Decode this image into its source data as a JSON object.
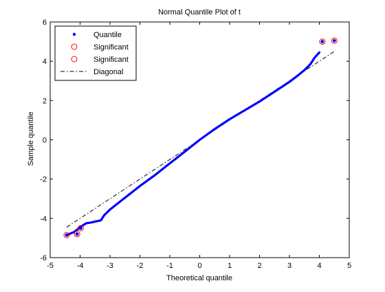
{
  "chart_data": {
    "type": "scatter",
    "title": "Normal Quantile Plot of t",
    "xlabel": "Theoretical quantile",
    "ylabel": "Sample quantile",
    "xlim": [
      -5,
      5
    ],
    "ylim": [
      -6,
      6
    ],
    "xticks": [
      -5,
      -4,
      -3,
      -2,
      -1,
      0,
      1,
      2,
      3,
      4,
      5
    ],
    "yticks": [
      -6,
      -4,
      -2,
      0,
      2,
      4,
      6
    ],
    "grid": false,
    "legend": {
      "position": "top-left",
      "entries": [
        {
          "label": "Quantile",
          "marker": "dot",
          "color": "#0000ff"
        },
        {
          "label": "Significant",
          "marker": "circle",
          "color": "#ff0000"
        },
        {
          "label": "Significant",
          "marker": "circle",
          "color": "#ff0000"
        },
        {
          "label": "Diagonal",
          "marker": "dashdot-line",
          "color": "#000000"
        }
      ]
    },
    "series": [
      {
        "name": "Quantile",
        "color": "#0000ff",
        "curve": [
          [
            -4.45,
            -4.85
          ],
          [
            -4.2,
            -4.7
          ],
          [
            -4.0,
            -4.45
          ],
          [
            -3.8,
            -4.25
          ],
          [
            -3.6,
            -4.2
          ],
          [
            -3.45,
            -4.15
          ],
          [
            -3.3,
            -4.1
          ],
          [
            -3.2,
            -3.85
          ],
          [
            -3.0,
            -3.55
          ],
          [
            -2.5,
            -2.95
          ],
          [
            -2.0,
            -2.35
          ],
          [
            -1.5,
            -1.8
          ],
          [
            -1.0,
            -1.2
          ],
          [
            -0.5,
            -0.6
          ],
          [
            0.0,
            0.0
          ],
          [
            0.5,
            0.55
          ],
          [
            1.0,
            1.05
          ],
          [
            1.5,
            1.5
          ],
          [
            2.0,
            1.95
          ],
          [
            2.5,
            2.45
          ],
          [
            3.0,
            2.95
          ],
          [
            3.3,
            3.3
          ],
          [
            3.5,
            3.55
          ],
          [
            3.7,
            3.85
          ],
          [
            3.85,
            4.2
          ],
          [
            4.0,
            4.45
          ]
        ],
        "points": [
          [
            -4.45,
            -4.85
          ],
          [
            -4.1,
            -4.8
          ],
          [
            -3.98,
            -4.5
          ],
          [
            4.1,
            5.0
          ],
          [
            4.5,
            5.05
          ]
        ]
      },
      {
        "name": "Significant",
        "color": "#ff0000",
        "points": [
          [
            -4.45,
            -4.85
          ],
          [
            -4.1,
            -4.8
          ],
          [
            -3.98,
            -4.5
          ]
        ]
      },
      {
        "name": "Significant",
        "color": "#ff0000",
        "points": [
          [
            4.1,
            5.0
          ],
          [
            4.5,
            5.05
          ]
        ]
      },
      {
        "name": "Diagonal",
        "color": "#000000",
        "line": [
          [
            -4.45,
            -4.45
          ],
          [
            4.5,
            4.5
          ]
        ]
      }
    ]
  }
}
